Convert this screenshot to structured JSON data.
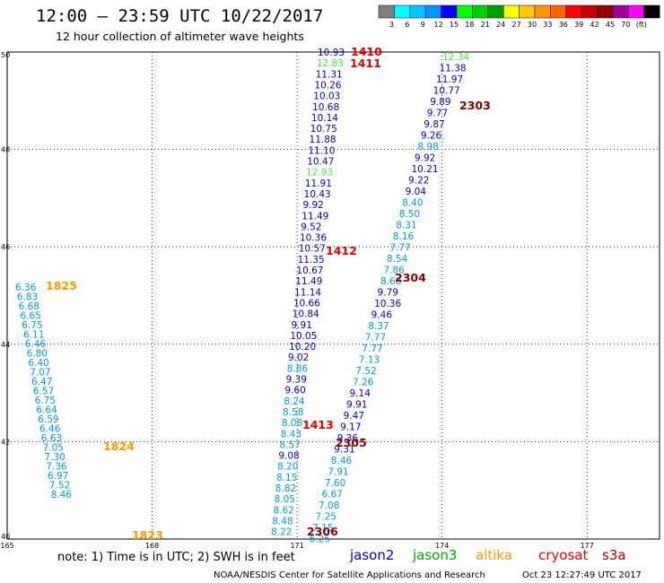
{
  "header": {
    "title": "12:00 – 23:59 UTC 10/22/2017",
    "subtitle": "12 hour collection of altimeter wave heights"
  },
  "legend": {
    "colors": [
      "#7f7f7f",
      "#00ffff",
      "#00c8ff",
      "#0096ff",
      "#0000ff",
      "#00ff00",
      "#00d200",
      "#00a000",
      "#ffff00",
      "#ffc800",
      "#ff9600",
      "#ff6400",
      "#ff0000",
      "#c80000",
      "#960000",
      "#a000a0",
      "#ff00ff",
      "#000000"
    ],
    "labels": [
      "3",
      "6",
      "9",
      "12",
      "15",
      "18",
      "21",
      "24",
      "27",
      "30",
      "33",
      "36",
      "39",
      "42",
      "45",
      "70",
      "(ft)"
    ]
  },
  "footer": {
    "note": "note:  1) Time is in UTC; 2) SWH is in feet",
    "satellites": [
      {
        "name": "jason2",
        "color": "#0000cc"
      },
      {
        "name": "jason3",
        "color": "#00aa00"
      },
      {
        "name": "altika",
        "color": "#ff9900"
      },
      {
        "name": "cryosat",
        "color": "#ee0000"
      },
      {
        "name": "s3a",
        "color": "#aa0000"
      }
    ],
    "credit": "NOAA/NESDIS Center for Satellite Applications and Research",
    "timestamp": "Oct 23 12:27:49 UTC 2017"
  },
  "chart_data": {
    "type": "scatter",
    "title": "12:00 – 23:59 UTC 10/22/2017",
    "subtitle": "12 hour collection of altimeter wave heights",
    "xlim": [
      165,
      178.5
    ],
    "ylim": [
      40,
      50
    ],
    "x_ticks": [
      "165",
      "168",
      "171",
      "174",
      "177"
    ],
    "y_ticks": [
      "40",
      "42",
      "44",
      "46",
      "48",
      "50"
    ],
    "grid": true,
    "value_colors": [
      {
        "min": 3,
        "max": 6,
        "color": "#00bbdd"
      },
      {
        "min": 6,
        "max": 9,
        "color": "#0099ee"
      },
      {
        "min": 9,
        "max": 12,
        "color": "#0000cc"
      },
      {
        "min": 12,
        "max": 15,
        "color": "#44ee44"
      }
    ],
    "series": [
      {
        "name": "altika",
        "color": "#ff9900",
        "values": [
          6.36,
          6.83,
          6.68,
          6.65,
          6.75,
          6.11,
          6.46,
          6.8,
          6.4,
          7.07,
          6.47,
          6.57,
          6.75,
          6.64,
          6.59,
          6.46,
          6.63,
          7.05,
          7.3,
          7.36,
          6.97,
          7.52,
          8.46
        ]
      },
      {
        "name": "jason2",
        "color": "#0000cc",
        "values": [
          10.93,
          12.83,
          11.31,
          10.26,
          10.03,
          10.68,
          10.14,
          10.75,
          11.88,
          11.1,
          10.47,
          12.93,
          11.91,
          10.43,
          9.92,
          11.49,
          9.52,
          10.36,
          10.57,
          11.35,
          10.67,
          11.49,
          11.14,
          10.66,
          10.84,
          9.91,
          10.05,
          10.2,
          9.02,
          8.86,
          9.39,
          9.6,
          8.24,
          8.58,
          8.08,
          8.43,
          8.57,
          9.08,
          8.2,
          8.15,
          8.82,
          8.05,
          8.62,
          8.48,
          8.22
        ]
      },
      {
        "name": "jason3",
        "color": "#00aa00",
        "values": [
          12.34,
          11.38,
          11.97,
          10.77,
          9.89,
          9.77,
          9.87,
          9.26,
          8.98,
          9.92,
          10.21,
          9.22,
          9.04,
          8.4,
          8.5,
          8.31,
          8.16,
          7.77,
          8.54,
          7.86,
          8.68,
          9.79,
          10.36,
          9.46,
          8.37,
          7.77,
          7.77,
          7.13,
          7.52,
          7.26,
          9.14,
          9.91,
          9.47,
          9.17,
          9.36,
          9.31,
          8.46,
          7.91,
          7.6,
          6.67,
          7.08,
          7.25,
          7.15,
          6.25
        ]
      }
    ],
    "time_labels": [
      {
        "text": "1410",
        "color": "#dd0000"
      },
      {
        "text": "1411",
        "color": "#dd0000"
      },
      {
        "text": "1412",
        "color": "#dd0000"
      },
      {
        "text": "1413",
        "color": "#dd0000"
      },
      {
        "text": "2303",
        "color": "#880000"
      },
      {
        "text": "2304",
        "color": "#880000"
      },
      {
        "text": "2305",
        "color": "#880000"
      },
      {
        "text": "2306",
        "color": "#880000"
      },
      {
        "text": "1825",
        "color": "#ff9900"
      },
      {
        "text": "1824",
        "color": "#ff9900"
      },
      {
        "text": "1823",
        "color": "#ff9900"
      }
    ]
  }
}
